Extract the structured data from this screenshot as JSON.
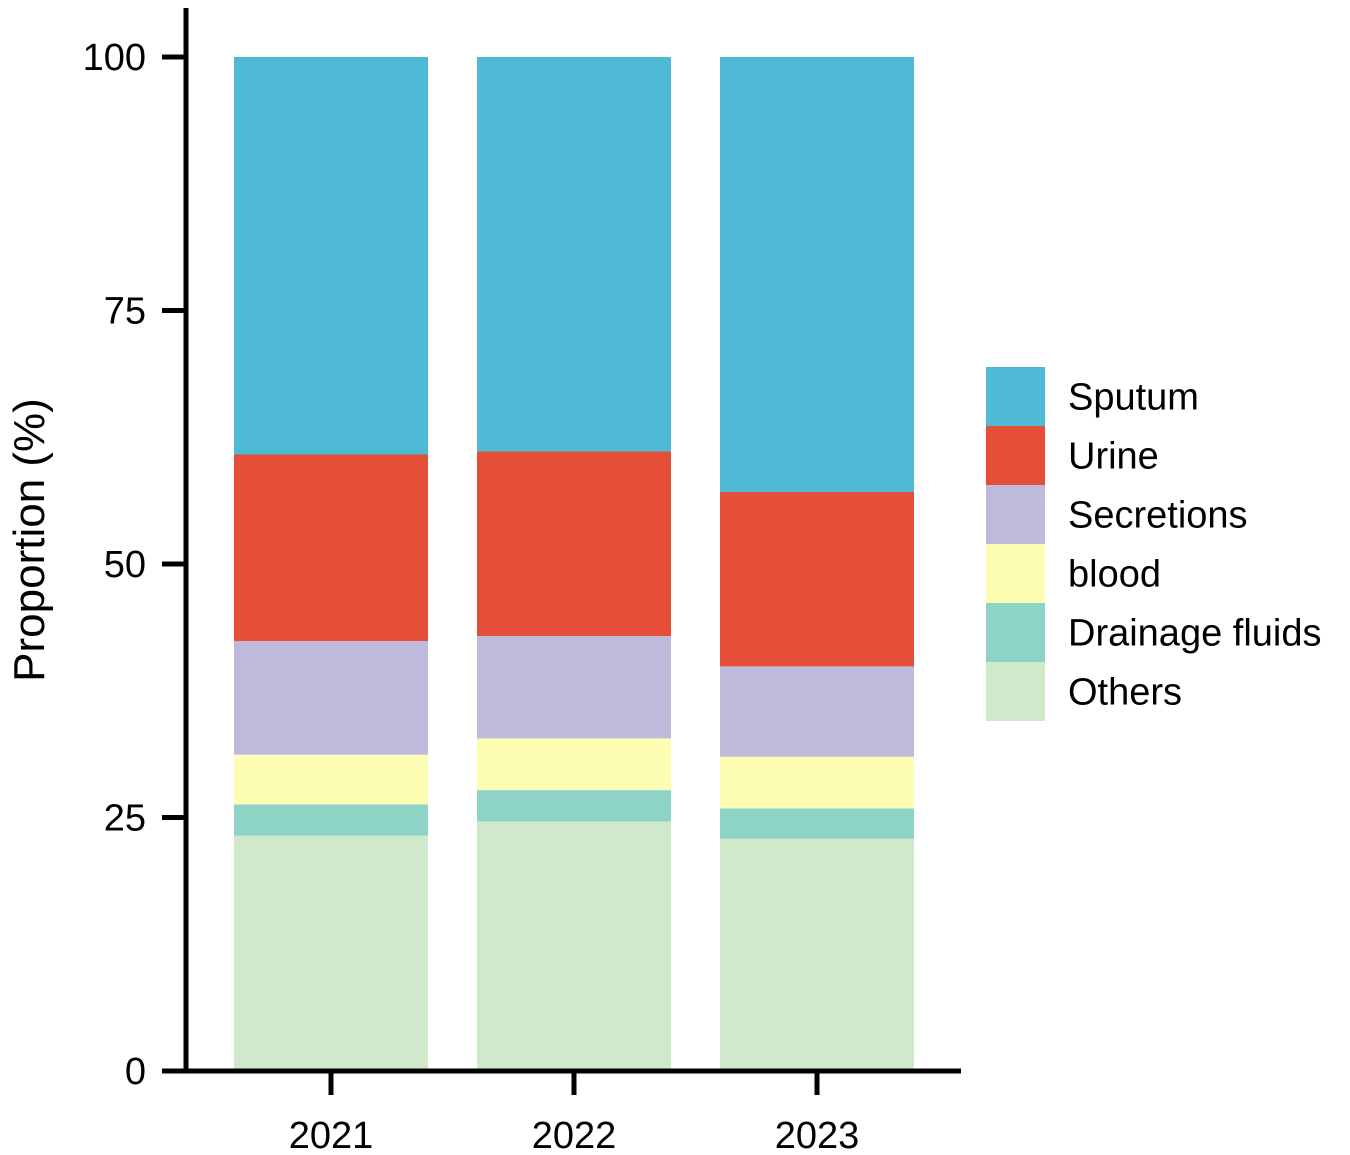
{
  "chart_data": {
    "type": "bar",
    "stacked": true,
    "title": "",
    "xlabel": "",
    "ylabel": "Proportion (%)",
    "ylim": [
      0,
      100
    ],
    "yticks": [
      0,
      25,
      50,
      75,
      100
    ],
    "categories": [
      "2021",
      "2022",
      "2023"
    ],
    "series": [
      {
        "name": "Others",
        "color": "#d1e9cb",
        "values": [
          23.2,
          24.6,
          22.9
        ]
      },
      {
        "name": "Drainage fluids",
        "color": "#8ed4c6",
        "values": [
          3.1,
          3.1,
          3.0
        ]
      },
      {
        "name": "blood",
        "color": "#fefdb4",
        "values": [
          4.9,
          5.1,
          5.1
        ]
      },
      {
        "name": "Secretions",
        "color": "#bdbadb",
        "values": [
          11.2,
          10.1,
          8.9
        ]
      },
      {
        "name": "Urine",
        "color": "#e54e37",
        "values": [
          18.4,
          18.2,
          17.2
        ]
      },
      {
        "name": "Sputum",
        "color": "#4ebad5",
        "values": [
          39.2,
          38.9,
          42.9
        ]
      }
    ],
    "legend": {
      "position": "right",
      "order": [
        "Sputum",
        "Urine",
        "Secretions",
        "blood",
        "Drainage fluids",
        "Others"
      ]
    }
  }
}
